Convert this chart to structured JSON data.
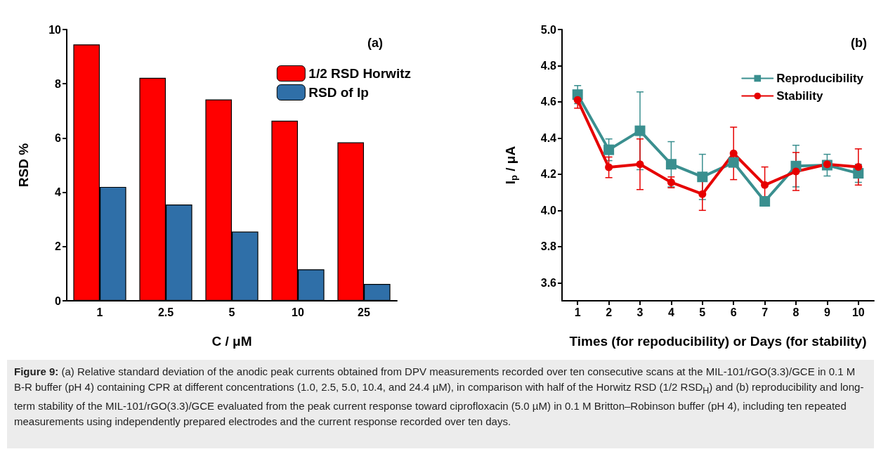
{
  "chart_data": [
    {
      "type": "bar",
      "categories": [
        "1",
        "2.5",
        "5",
        "10",
        "25"
      ],
      "xlabel": "C / μM",
      "ylabel": "RSD %",
      "ylim": [
        0,
        10
      ],
      "yticks": [
        0,
        2,
        4,
        6,
        8,
        10
      ],
      "legend": "top right",
      "grid": false,
      "series": [
        {
          "name": "1/2 RSD Horwitz",
          "color": "#ff0000",
          "values": [
            9.45,
            8.22,
            7.42,
            6.64,
            5.84
          ]
        },
        {
          "name": "RSD of Ip",
          "color": "#2f6fa8",
          "values": [
            4.2,
            3.55,
            2.55,
            1.16,
            0.62
          ]
        }
      ],
      "annotations": [
        "(a)",
        "Figure 9: (a) Relative standard deviation of the anodic peak currents obtained from DPV measurements recorded over ten consecutive scans at the MIL-101/rGO(3.3)/GCE in 0.1 M B-R buffer (pH 4) containing CPR at different concentrations (1.0, 2.5, 5.0, 10.4, and 24.4 µM), in comparison with half of the Horwitz RSD (1/2 RSD$_{H}$) and (b) reproducibility and long-term stability of the MIL-101/rGO(3.3)/GCE evaluated from the peak current response toward ciprofloxacin (5.0 µM) in 0.1 M Britton–Robinson buffer (pH 4), including ten repeated measurements using independently prepared electrodes and the current response recorded over ten days."
      ]
    },
    {
      "type": "line",
      "x": [
        1,
        2,
        3,
        4,
        5,
        6,
        7,
        8,
        9,
        10
      ],
      "xlabel": "Times (for repoducibility) or Days (for stability)",
      "ylabel": "I$_{p}$ / μA",
      "xlim": [
        0.5,
        10.5
      ],
      "xticks": [
        1,
        2,
        3,
        4,
        5,
        6,
        7,
        8,
        9,
        10
      ],
      "ylim": [
        3.5,
        5.0
      ],
      "yticks": [
        3.6,
        3.8,
        {
          "value": 4.0,
          "label": "4.0"
        },
        4.2,
        4.4,
        4.6,
        4.8,
        {
          "value": 5.0,
          "label": "5.0"
        }
      ],
      "legend": "top right",
      "grid": false,
      "line_style": "solid",
      "series": [
        {
          "name": "Reproducibility",
          "color": "#3a8f8f",
          "marker": "square",
          "values": [
            4.64,
            4.335,
            4.44,
            4.255,
            4.185,
            4.265,
            4.05,
            4.245,
            4.25,
            4.205
          ],
          "errors": [
            0.05,
            0.06,
            0.215,
            0.125,
            0.125,
            null,
            0.025,
            0.115,
            0.06,
            0.05
          ]
        },
        {
          "name": "Stability",
          "color": "#e60000",
          "marker": "circle",
          "values": [
            4.61,
            4.238,
            4.255,
            4.155,
            4.09,
            4.315,
            4.14,
            4.215,
            4.255,
            4.24
          ],
          "errors": [
            0.045,
            0.057,
            0.14,
            0.03,
            0.09,
            0.145,
            0.1,
            0.105,
            0.02,
            0.1
          ]
        }
      ],
      "annotations": [
        "(b)"
      ]
    }
  ]
}
